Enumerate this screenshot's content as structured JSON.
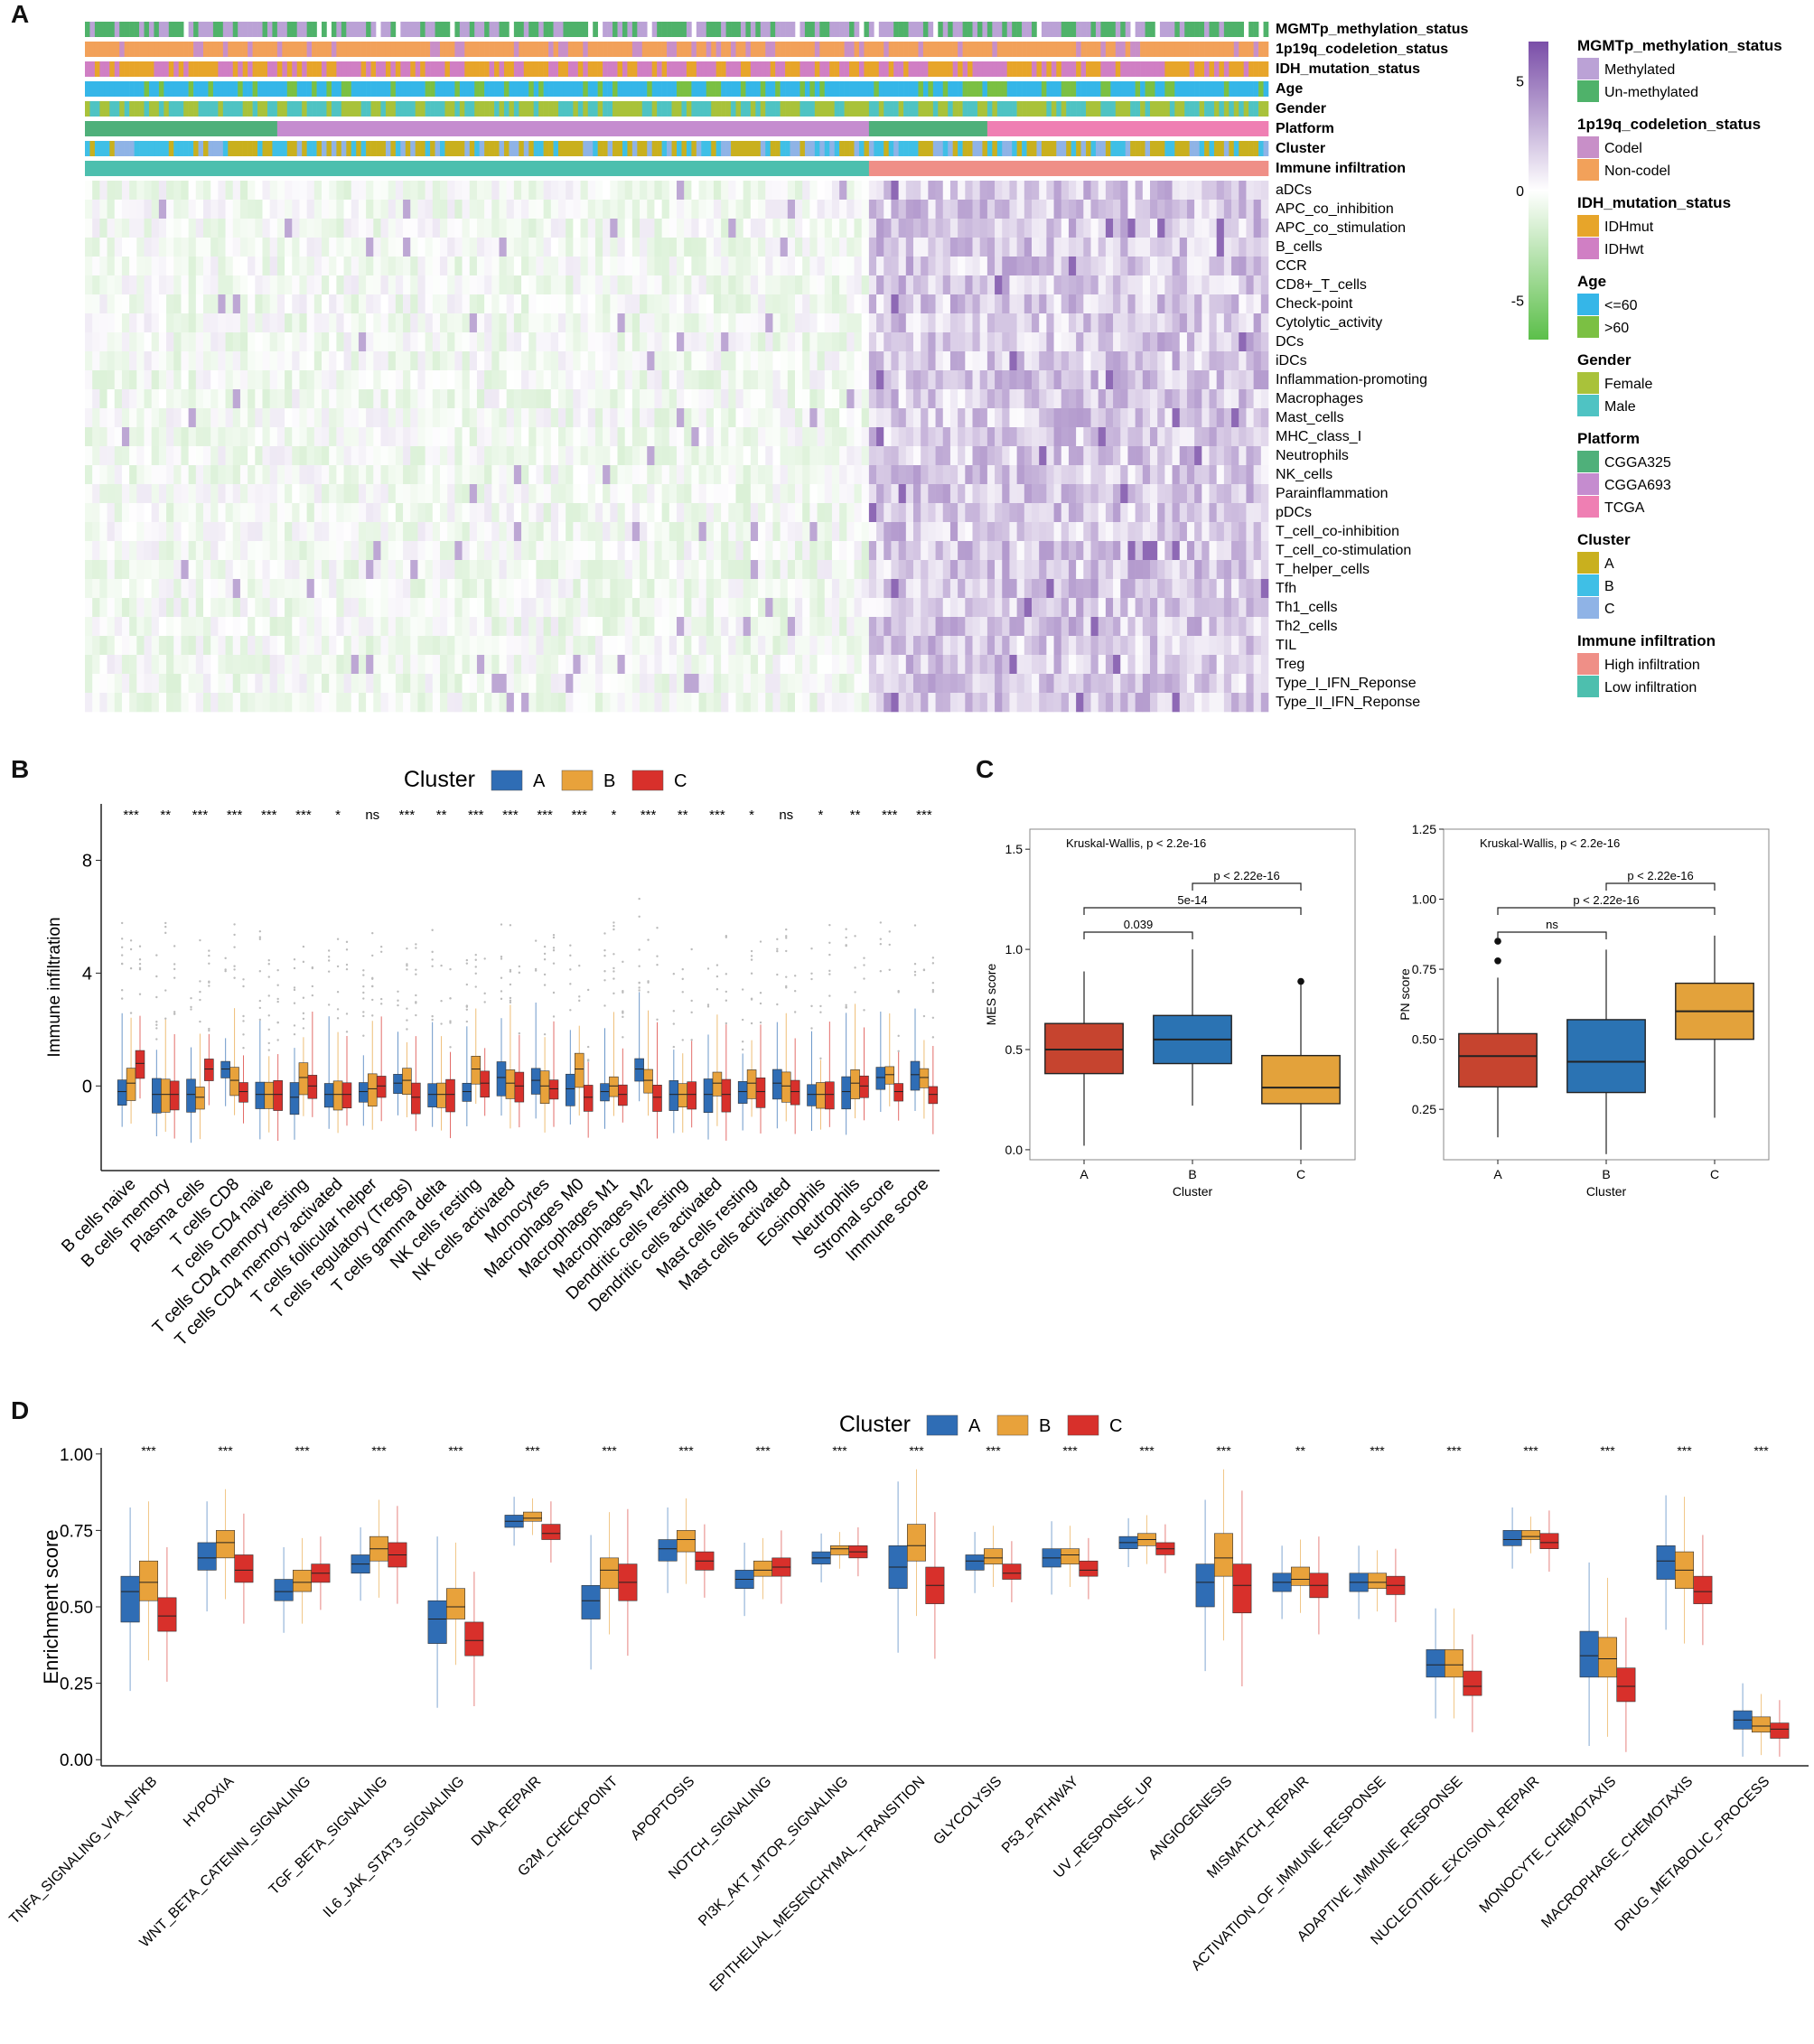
{
  "panels": {
    "a": "A",
    "b": "B",
    "c": "C",
    "d": "D"
  },
  "colors": {
    "A": "#2f6db5",
    "B": "#e8a23b",
    "C": "#d8302b",
    "boxA_c": "#c6442f",
    "boxB_c": "#2b73b3",
    "boxC_c": "#e3a23b",
    "methylated": "#bba2d6",
    "unmethylated": "#4fb26a",
    "codel": "#c88fc8",
    "noncodel": "#f2a15a",
    "idhmut": "#e7a52a",
    "idhwt": "#d07fc4",
    "age_le60": "#35b6e8",
    "age_gt60": "#7bc043",
    "female": "#a9c23a",
    "male": "#4fc3c3",
    "cgga325": "#4fb07a",
    "cgga693": "#c58ccf",
    "tcga": "#ef7fb3",
    "clusterA": "#c9b01e",
    "clusterB": "#3fbfe6",
    "clusterC": "#8fb3e6",
    "high_inf": "#ef8f87",
    "low_inf": "#4dbfae",
    "heat_high": "#7a4ea8",
    "heat_mid": "#ffffff",
    "heat_low": "#5cbf4a"
  },
  "heatmap": {
    "annotation_rows": [
      "MGMTp_methylation_status",
      "1p19q_codeletion_status",
      "IDH_mutation_status",
      "Age",
      "Gender",
      "Platform",
      "Cluster",
      "Immune infiltration"
    ],
    "rows": [
      "aDCs",
      "APC_co_inhibition",
      "APC_co_stimulation",
      "B_cells",
      "CCR",
      "CD8+_T_cells",
      "Check-point",
      "Cytolytic_activity",
      "DCs",
      "iDCs",
      "Inflammation-promoting",
      "Macrophages",
      "Mast_cells",
      "MHC_class_I",
      "Neutrophils",
      "NK_cells",
      "Parainflammation",
      "pDCs",
      "T_cell_co-inhibition",
      "T_cell_co-stimulation",
      "T_helper_cells",
      "Tfh",
      "Th1_cells",
      "Th2_cells",
      "TIL",
      "Treg",
      "Type_I_IFN_Reponse",
      "Type_II_IFN_Reponse"
    ],
    "colorbar_ticks": [
      "5",
      "0",
      "-5"
    ],
    "colorbar_values": [
      5,
      0,
      -5
    ],
    "legend": [
      {
        "title": "MGMTp_methylation_status",
        "items": [
          {
            "label": "Methylated",
            "color": "methylated"
          },
          {
            "label": "Un-methylated",
            "color": "unmethylated"
          }
        ]
      },
      {
        "title": "1p19q_codeletion_status",
        "items": [
          {
            "label": "Codel",
            "color": "codel"
          },
          {
            "label": "Non-codel",
            "color": "noncodel"
          }
        ]
      },
      {
        "title": "IDH_mutation_status",
        "items": [
          {
            "label": "IDHmut",
            "color": "idhmut"
          },
          {
            "label": "IDHwt",
            "color": "idhwt"
          }
        ]
      },
      {
        "title": "Age",
        "items": [
          {
            "label": "<=60",
            "color": "age_le60"
          },
          {
            "label": ">60",
            "color": "age_gt60"
          }
        ]
      },
      {
        "title": "Gender",
        "items": [
          {
            "label": "Female",
            "color": "female"
          },
          {
            "label": "Male",
            "color": "male"
          }
        ]
      },
      {
        "title": "Platform",
        "items": [
          {
            "label": "CGGA325",
            "color": "cgga325"
          },
          {
            "label": "CGGA693",
            "color": "cgga693"
          },
          {
            "label": "TCGA",
            "color": "tcga"
          }
        ]
      },
      {
        "title": "Cluster",
        "items": [
          {
            "label": "A",
            "color": "clusterA"
          },
          {
            "label": "B",
            "color": "clusterB"
          },
          {
            "label": "C",
            "color": "clusterC"
          }
        ]
      },
      {
        "title": "Immune infiltration",
        "items": [
          {
            "label": "High infiltration",
            "color": "high_inf"
          },
          {
            "label": "Low infiltration",
            "color": "low_inf"
          }
        ]
      }
    ]
  },
  "chart_data": [
    {
      "id": "B",
      "type": "box",
      "legend_title": "Cluster",
      "legend": [
        "A",
        "B",
        "C"
      ],
      "ylabel": "Immune infiltration",
      "ylim": [
        -3,
        10
      ],
      "yticks": [
        0,
        4,
        8
      ],
      "categories": [
        "B cells naive",
        "B cells memory",
        "Plasma cells",
        "T cells CD8",
        "T cells CD4 naive",
        "T cells CD4 memory resting",
        "T cells CD4 memory activated",
        "T cells follicular helper",
        "T cells regulatory (Tregs)",
        "T cells gamma delta",
        "NK cells resting",
        "NK cells activated",
        "Monocytes",
        "Macrophages M0",
        "Macrophages M1",
        "Macrophages M2",
        "Dendritic cells resting",
        "Dendritic cells activated",
        "Mast cells resting",
        "Mast cells activated",
        "Eosinophils",
        "Neutrophils",
        "Stromal score",
        "Immune score"
      ],
      "significance": [
        "***",
        "**",
        "***",
        "***",
        "***",
        "***",
        "*",
        "ns",
        "***",
        "**",
        "***",
        "***",
        "***",
        "***",
        "*",
        "***",
        "**",
        "***",
        "*",
        "ns",
        "*",
        "**",
        "***",
        "***"
      ],
      "series": [
        {
          "name": "A",
          "medians": [
            -0.2,
            -0.3,
            -0.3,
            0.6,
            -0.3,
            -0.4,
            -0.3,
            -0.2,
            0.1,
            -0.3,
            -0.2,
            0.3,
            0.2,
            -0.1,
            -0.2,
            0.6,
            -0.3,
            -0.3,
            -0.2,
            0.1,
            -0.3,
            -0.2,
            0.3,
            0.4
          ]
        },
        {
          "name": "B",
          "medians": [
            0.1,
            -0.3,
            -0.4,
            0.2,
            -0.3,
            0.3,
            -0.3,
            -0.1,
            0.2,
            -0.3,
            0.6,
            0.1,
            0.0,
            0.6,
            0.0,
            0.2,
            -0.3,
            0.1,
            0.1,
            0.0,
            -0.3,
            0.1,
            0.4,
            0.3
          ]
        },
        {
          "name": "C",
          "medians": [
            0.8,
            -0.3,
            0.6,
            -0.2,
            -0.3,
            0.0,
            -0.3,
            0.0,
            -0.4,
            -0.3,
            0.1,
            0.0,
            -0.1,
            -0.4,
            -0.3,
            -0.4,
            -0.3,
            -0.3,
            -0.2,
            -0.2,
            -0.3,
            0.0,
            -0.2,
            -0.3
          ]
        }
      ]
    },
    {
      "id": "C1",
      "type": "box",
      "annotation": "Kruskal-Wallis, p < 2.2e-16",
      "xlabel": "Cluster",
      "ylabel": "MES score",
      "ylim": [
        -0.05,
        1.6
      ],
      "yticks": [
        "0.0",
        "0.5",
        "1.0",
        "1.5"
      ],
      "categories": [
        "A",
        "B",
        "C"
      ],
      "boxes": [
        {
          "q1": 0.38,
          "median": 0.5,
          "q3": 0.63,
          "min": 0.02,
          "max": 0.89,
          "outliers": []
        },
        {
          "q1": 0.43,
          "median": 0.55,
          "q3": 0.67,
          "min": 0.22,
          "max": 1.0,
          "outliers": []
        },
        {
          "q1": 0.23,
          "median": 0.31,
          "q3": 0.47,
          "min": 0.0,
          "max": 0.83,
          "outliers": [
            0.84
          ]
        }
      ],
      "comparisons": [
        {
          "label": "0.039",
          "from": 0,
          "to": 1
        },
        {
          "label": "5e-14",
          "from": 0,
          "to": 2
        },
        {
          "label": "p < 2.22e-16",
          "from": 1,
          "to": 2
        }
      ]
    },
    {
      "id": "C2",
      "type": "box",
      "annotation": "Kruskal-Wallis, p < 2.2e-16",
      "xlabel": "Cluster",
      "ylabel": "PN score",
      "ylim": [
        0.07,
        1.25
      ],
      "yticks": [
        "0.25",
        "0.50",
        "0.75",
        "1.00",
        "1.25"
      ],
      "categories": [
        "A",
        "B",
        "C"
      ],
      "boxes": [
        {
          "q1": 0.33,
          "median": 0.44,
          "q3": 0.52,
          "min": 0.15,
          "max": 0.72,
          "outliers": [
            0.78,
            0.85
          ]
        },
        {
          "q1": 0.31,
          "median": 0.42,
          "q3": 0.57,
          "min": 0.09,
          "max": 0.82,
          "outliers": []
        },
        {
          "q1": 0.5,
          "median": 0.6,
          "q3": 0.7,
          "min": 0.22,
          "max": 0.87,
          "outliers": []
        }
      ],
      "comparisons": [
        {
          "label": "ns",
          "from": 0,
          "to": 1
        },
        {
          "label": "p < 2.22e-16",
          "from": 0,
          "to": 2
        },
        {
          "label": "p < 2.22e-16",
          "from": 1,
          "to": 2
        }
      ]
    },
    {
      "id": "D",
      "type": "box",
      "legend_title": "Cluster",
      "legend": [
        "A",
        "B",
        "C"
      ],
      "ylabel": "Enrichment score",
      "ylim": [
        -0.02,
        1.02
      ],
      "yticks": [
        "0.00",
        "0.25",
        "0.50",
        "0.75",
        "1.00"
      ],
      "categories": [
        "TNFA_SIGNALING_VIA_NFKB",
        "HYPOXIA",
        "WNT_BETA_CATENIN_SIGNALING",
        "TGF_BETA_SIGNALING",
        "IL6_JAK_STAT3_SIGNALING",
        "DNA_REPAIR",
        "G2M_CHECKPOINT",
        "APOPTOSIS",
        "NOTCH_SIGNALING",
        "PI3K_AKT_MTOR_SIGNALING",
        "EPITHELIAL_MESENCHYMAL_TRANSITION",
        "GLYCOLYSIS",
        "P53_PATHWAY",
        "UV_RESPONSE_UP",
        "ANGIOGENESIS",
        "MISMATCH_REPAIR",
        "ACTIVATION_OF_IMMUNE_RESPONSE",
        "ADAPTIVE_IMMUNE_RESPONSE",
        "NUCLEOTIDE_EXCISION_REPAIR",
        "MONOCYTE_CHEMOTAXIS",
        "MACROPHAGE_CHEMOTAXIS",
        "DRUG_METABOLIC_PROCESS"
      ],
      "significance": [
        "***",
        "***",
        "***",
        "***",
        "***",
        "***",
        "***",
        "***",
        "***",
        "***",
        "***",
        "***",
        "***",
        "***",
        "***",
        "**",
        "***",
        "***",
        "***",
        "***",
        "***",
        "***"
      ],
      "series": [
        {
          "name": "A",
          "q1": [
            0.45,
            0.62,
            0.52,
            0.61,
            0.38,
            0.76,
            0.46,
            0.65,
            0.56,
            0.64,
            0.56,
            0.62,
            0.63,
            0.69,
            0.5,
            0.55,
            0.55,
            0.27,
            0.7,
            0.27,
            0.59,
            0.1
          ],
          "median": [
            0.55,
            0.66,
            0.55,
            0.64,
            0.46,
            0.78,
            0.52,
            0.69,
            0.59,
            0.66,
            0.63,
            0.65,
            0.66,
            0.71,
            0.58,
            0.58,
            0.58,
            0.31,
            0.72,
            0.34,
            0.65,
            0.13
          ],
          "q3": [
            0.6,
            0.71,
            0.59,
            0.67,
            0.52,
            0.8,
            0.57,
            0.72,
            0.62,
            0.68,
            0.7,
            0.67,
            0.69,
            0.73,
            0.64,
            0.61,
            0.61,
            0.36,
            0.75,
            0.42,
            0.7,
            0.16
          ]
        },
        {
          "name": "B",
          "q1": [
            0.52,
            0.66,
            0.55,
            0.65,
            0.46,
            0.78,
            0.56,
            0.68,
            0.6,
            0.67,
            0.65,
            0.64,
            0.64,
            0.7,
            0.6,
            0.57,
            0.56,
            0.27,
            0.72,
            0.27,
            0.56,
            0.09
          ],
          "median": [
            0.58,
            0.71,
            0.58,
            0.69,
            0.5,
            0.79,
            0.62,
            0.72,
            0.62,
            0.69,
            0.7,
            0.66,
            0.67,
            0.72,
            0.66,
            0.59,
            0.58,
            0.31,
            0.73,
            0.33,
            0.62,
            0.11
          ],
          "q3": [
            0.65,
            0.75,
            0.62,
            0.73,
            0.56,
            0.81,
            0.66,
            0.75,
            0.65,
            0.7,
            0.77,
            0.69,
            0.69,
            0.74,
            0.74,
            0.63,
            0.61,
            0.36,
            0.75,
            0.4,
            0.68,
            0.14
          ]
        },
        {
          "name": "C",
          "q1": [
            0.42,
            0.58,
            0.58,
            0.63,
            0.34,
            0.72,
            0.52,
            0.62,
            0.6,
            0.66,
            0.51,
            0.59,
            0.6,
            0.67,
            0.48,
            0.53,
            0.54,
            0.21,
            0.69,
            0.19,
            0.51,
            0.07
          ],
          "median": [
            0.47,
            0.62,
            0.61,
            0.67,
            0.39,
            0.74,
            0.58,
            0.65,
            0.63,
            0.68,
            0.57,
            0.61,
            0.62,
            0.69,
            0.57,
            0.57,
            0.57,
            0.24,
            0.71,
            0.24,
            0.55,
            0.1
          ],
          "q3": [
            0.53,
            0.67,
            0.64,
            0.71,
            0.45,
            0.77,
            0.64,
            0.68,
            0.66,
            0.7,
            0.63,
            0.64,
            0.65,
            0.71,
            0.64,
            0.61,
            0.6,
            0.29,
            0.74,
            0.3,
            0.6,
            0.12
          ]
        }
      ]
    }
  ]
}
